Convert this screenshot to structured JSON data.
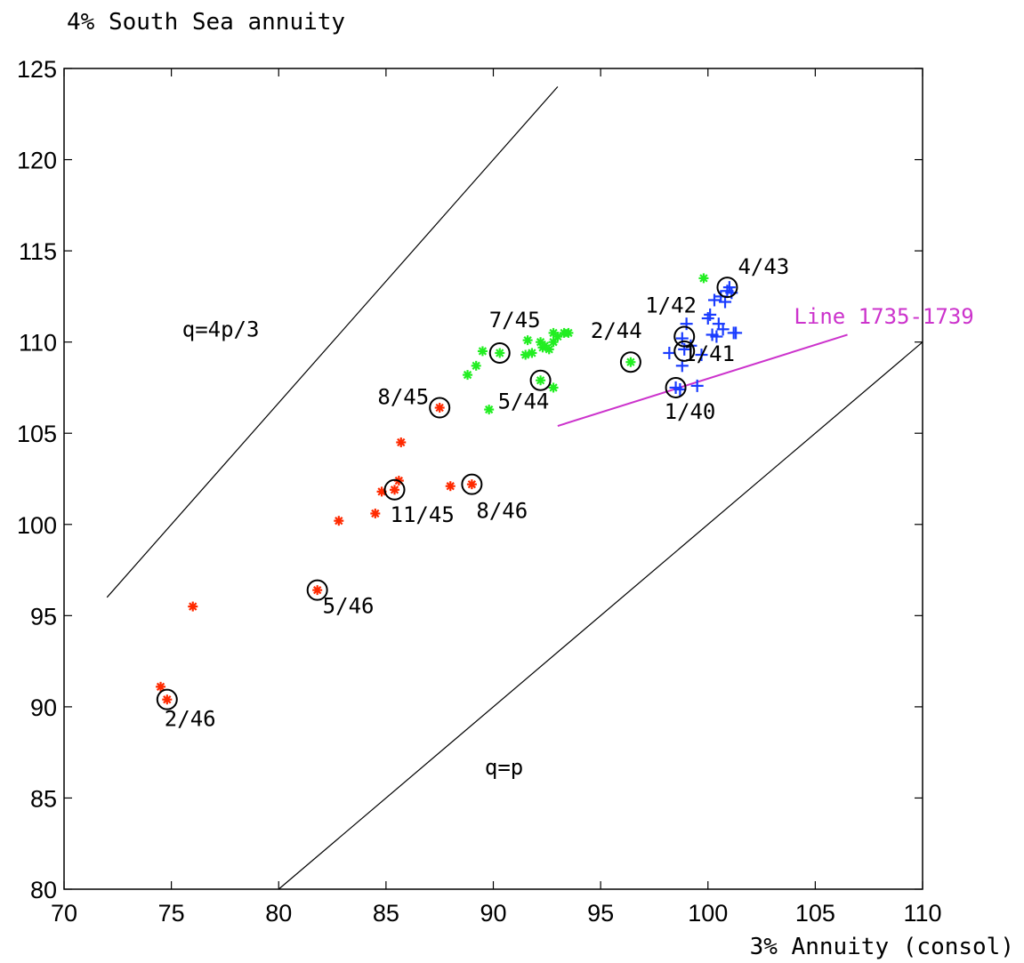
{
  "chart_data": {
    "type": "scatter",
    "title": "4% South Sea annuity",
    "xlabel": "3% Annuity (consol)",
    "ylabel": "",
    "xlim": [
      70,
      110
    ],
    "ylim": [
      80,
      125
    ],
    "xticks": [
      70,
      75,
      80,
      85,
      90,
      95,
      100,
      105,
      110
    ],
    "yticks": [
      80,
      85,
      90,
      95,
      100,
      105,
      110,
      115,
      120,
      125
    ],
    "grid": false,
    "legend": "none",
    "colors": {
      "red_series": "#ff2a00",
      "green_series": "#22ee22",
      "blue_series": "#1a3cff",
      "line_1735": "#cc33cc",
      "axes": "#000000"
    },
    "series": [
      {
        "marker": "asterisk",
        "color": "#ff2a00",
        "points": [
          [
            74.5,
            91.1
          ],
          [
            74.8,
            90.4
          ],
          [
            76.0,
            95.5
          ],
          [
            81.8,
            96.4
          ],
          [
            82.8,
            100.2
          ],
          [
            84.5,
            100.6
          ],
          [
            84.8,
            101.8
          ],
          [
            85.4,
            101.9
          ],
          [
            85.6,
            102.4
          ],
          [
            85.7,
            104.5
          ],
          [
            87.5,
            106.4
          ],
          [
            88.0,
            102.1
          ],
          [
            89.0,
            102.2
          ]
        ]
      },
      {
        "marker": "asterisk",
        "color": "#22ee22",
        "points": [
          [
            88.8,
            108.2
          ],
          [
            89.2,
            108.7
          ],
          [
            89.5,
            109.5
          ],
          [
            89.8,
            106.3
          ],
          [
            90.3,
            109.4
          ],
          [
            91.5,
            109.3
          ],
          [
            91.6,
            110.1
          ],
          [
            91.8,
            109.4
          ],
          [
            92.2,
            107.9
          ],
          [
            92.2,
            110.0
          ],
          [
            92.3,
            109.7
          ],
          [
            92.4,
            109.8
          ],
          [
            92.6,
            109.6
          ],
          [
            92.8,
            110.0
          ],
          [
            92.8,
            110.5
          ],
          [
            92.8,
            107.5
          ],
          [
            93.0,
            110.3
          ],
          [
            93.3,
            110.5
          ],
          [
            93.5,
            110.5
          ],
          [
            96.4,
            108.9
          ],
          [
            99.8,
            113.5
          ]
        ]
      },
      {
        "marker": "plus",
        "color": "#1a3cff",
        "points": [
          [
            98.2,
            109.4
          ],
          [
            98.5,
            107.5
          ],
          [
            98.7,
            107.4
          ],
          [
            98.8,
            110.2
          ],
          [
            98.8,
            108.7
          ],
          [
            98.9,
            109.6
          ],
          [
            99.0,
            111.0
          ],
          [
            99.2,
            109.8
          ],
          [
            99.5,
            107.6
          ],
          [
            99.7,
            109.3
          ],
          [
            100.0,
            111.3
          ],
          [
            100.1,
            111.5
          ],
          [
            100.2,
            110.4
          ],
          [
            100.3,
            112.3
          ],
          [
            100.4,
            110.3
          ],
          [
            100.5,
            111.0
          ],
          [
            100.6,
            112.5
          ],
          [
            100.7,
            110.7
          ],
          [
            100.8,
            112.2
          ],
          [
            100.9,
            112.8
          ],
          [
            101.0,
            113.0
          ],
          [
            101.1,
            112.7
          ],
          [
            101.2,
            110.5
          ],
          [
            101.3,
            110.5
          ]
        ]
      }
    ],
    "highlighted_points": [
      {
        "x": 74.8,
        "y": 90.4,
        "label": "2/46"
      },
      {
        "x": 81.8,
        "y": 96.4,
        "label": "5/46"
      },
      {
        "x": 85.4,
        "y": 101.9,
        "label": "11/45"
      },
      {
        "x": 89.0,
        "y": 102.2,
        "label": "8/46"
      },
      {
        "x": 87.5,
        "y": 106.4,
        "label": "8/45"
      },
      {
        "x": 90.3,
        "y": 109.4,
        "label": "7/45"
      },
      {
        "x": 92.2,
        "y": 107.9,
        "label": "5/44"
      },
      {
        "x": 96.4,
        "y": 108.9,
        "label": "2/44"
      },
      {
        "x": 98.5,
        "y": 107.5,
        "label": "1/40"
      },
      {
        "x": 98.9,
        "y": 110.3,
        "label": "1/42"
      },
      {
        "x": 98.9,
        "y": 109.5,
        "label": "1/41"
      },
      {
        "x": 100.9,
        "y": 113.0,
        "label": "4/43"
      }
    ],
    "reference_lines": [
      {
        "label": "q=4p/3",
        "x": [
          72,
          93
        ],
        "y": [
          96,
          124
        ],
        "color": "#000000",
        "label_at": [
          77.3,
          110.3
        ]
      },
      {
        "label": "q=p",
        "x": [
          80,
          110
        ],
        "y": [
          80,
          110
        ],
        "color": "#000000",
        "label_at": [
          90.5,
          86.3
        ]
      },
      {
        "label": "Line 1735-1739",
        "x": [
          93,
          106.5
        ],
        "y": [
          105.4,
          110.4
        ],
        "color": "#cc33cc",
        "label_at": [
          108.2,
          111.0
        ]
      }
    ]
  }
}
